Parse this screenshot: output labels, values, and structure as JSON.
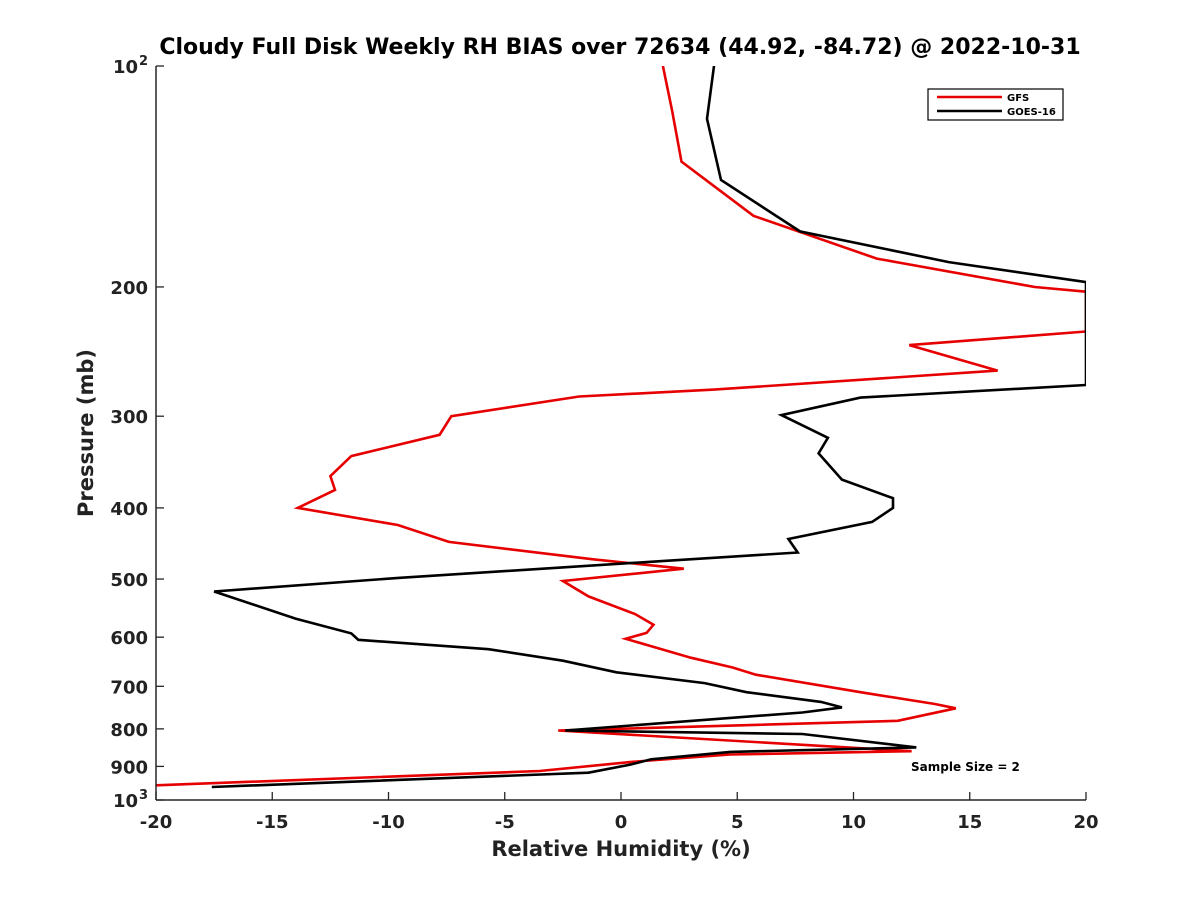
{
  "chart_data": {
    "type": "line",
    "title": "Cloudy Full Disk Weekly RH BIAS over 72634 (44.92, -84.72) @ 2022-10-31",
    "xlabel": "Relative Humidity (%)",
    "ylabel": "Pressure (mb)",
    "xlim": [
      -20,
      20
    ],
    "ylim": [
      100,
      1000
    ],
    "y_scale": "log",
    "y_inverted": true,
    "grid": false,
    "legend_position": "top-right",
    "x_ticks": [
      "-20",
      "-15",
      "-10",
      "-5",
      "0",
      "5",
      "10",
      "15",
      "20"
    ],
    "y_ticks": [
      {
        "value": 100,
        "label": "10",
        "exp": "2"
      },
      {
        "value": 200,
        "label": "200"
      },
      {
        "value": 300,
        "label": "300"
      },
      {
        "value": 400,
        "label": "400"
      },
      {
        "value": 500,
        "label": "500"
      },
      {
        "value": 600,
        "label": "600"
      },
      {
        "value": 700,
        "label": "700"
      },
      {
        "value": 800,
        "label": "800"
      },
      {
        "value": 900,
        "label": "900"
      },
      {
        "value": 1000,
        "label": "10",
        "exp": "3"
      }
    ],
    "series": [
      {
        "name": "GFS",
        "color": "#e60000",
        "points": [
          [
            1.8,
            100
          ],
          [
            2.2,
            115
          ],
          [
            2.6,
            135
          ],
          [
            5.7,
            160
          ],
          [
            11.0,
            183
          ],
          [
            17.8,
            200
          ],
          [
            20.0,
            203
          ],
          [
            20.0,
            230
          ],
          [
            12.4,
            240
          ],
          [
            16.2,
            260
          ],
          [
            4.0,
            276
          ],
          [
            -1.8,
            282
          ],
          [
            -7.3,
            300
          ],
          [
            -7.8,
            318
          ],
          [
            -11.6,
            340
          ],
          [
            -12.5,
            362
          ],
          [
            -12.3,
            378
          ],
          [
            -13.9,
            400
          ],
          [
            -9.6,
            422
          ],
          [
            -7.4,
            445
          ],
          [
            -1.2,
            470
          ],
          [
            2.7,
            484
          ],
          [
            -2.5,
            503
          ],
          [
            -1.4,
            528
          ],
          [
            0.6,
            558
          ],
          [
            1.4,
            577
          ],
          [
            1.1,
            592
          ],
          [
            0.2,
            603
          ],
          [
            3.0,
            640
          ],
          [
            4.8,
            660
          ],
          [
            5.8,
            675
          ],
          [
            10.3,
            713
          ],
          [
            13.5,
            740
          ],
          [
            14.4,
            750
          ],
          [
            11.9,
            780
          ],
          [
            -2.7,
            804
          ],
          [
            12.5,
            858
          ],
          [
            4.7,
            867
          ],
          [
            0.5,
            887
          ],
          [
            -3.5,
            913
          ],
          [
            -20.0,
            955
          ]
        ]
      },
      {
        "name": "GOES-16",
        "color": "#000000",
        "points": [
          [
            4.0,
            100
          ],
          [
            3.7,
            118
          ],
          [
            4.3,
            143
          ],
          [
            7.7,
            168
          ],
          [
            14.1,
            185
          ],
          [
            20.0,
            197
          ],
          [
            20.0,
            272
          ],
          [
            10.3,
            283
          ],
          [
            6.9,
            299
          ],
          [
            8.9,
            321
          ],
          [
            8.5,
            337
          ],
          [
            9.5,
            366
          ],
          [
            11.7,
            388
          ],
          [
            11.7,
            400
          ],
          [
            10.8,
            418
          ],
          [
            7.2,
            441
          ],
          [
            7.6,
            460
          ],
          [
            1.6,
            473
          ],
          [
            -9.5,
            498
          ],
          [
            -17.5,
            520
          ],
          [
            -14.0,
            566
          ],
          [
            -11.6,
            593
          ],
          [
            -11.3,
            605
          ],
          [
            -5.7,
            623
          ],
          [
            -2.5,
            646
          ],
          [
            -0.2,
            670
          ],
          [
            3.6,
            693
          ],
          [
            5.4,
            713
          ],
          [
            8.6,
            735
          ],
          [
            9.5,
            748
          ],
          [
            7.8,
            760
          ],
          [
            -2.4,
            804
          ],
          [
            7.8,
            813
          ],
          [
            12.7,
            848
          ],
          [
            4.7,
            860
          ],
          [
            1.3,
            880
          ],
          [
            0.4,
            895
          ],
          [
            -1.4,
            918
          ],
          [
            -17.6,
            960
          ]
        ]
      }
    ],
    "annotation": "Sample Size = 2"
  }
}
